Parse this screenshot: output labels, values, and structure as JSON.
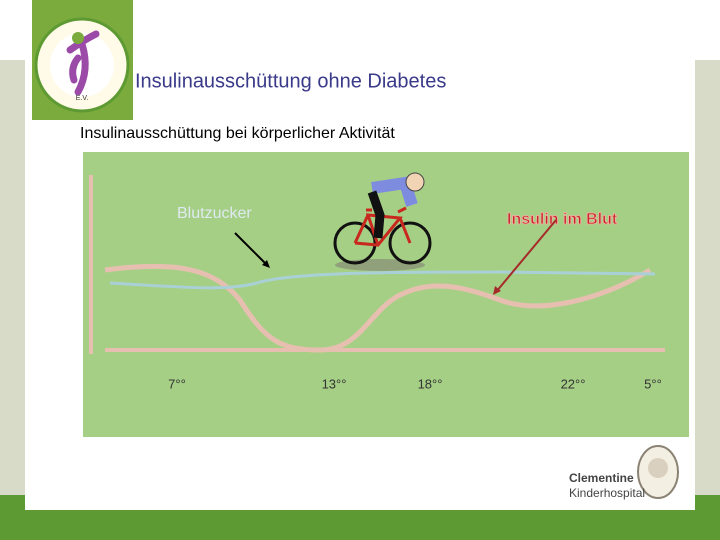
{
  "header": {
    "title": "Insulinausschüttung ohne Diabetes"
  },
  "subtitle": "Insulinausschüttung bei körperlicher Aktivität",
  "diagram": {
    "labels": {
      "blood_sugar": "Blutzucker",
      "insulin": "Insulin im Blut"
    },
    "times": [
      "7°°",
      "13°°",
      "18°°",
      "22°°",
      "5°°"
    ]
  },
  "logos": {
    "association": "E.V.",
    "hospital_name": "Clementine",
    "hospital_type": "Kinderhospital"
  }
}
